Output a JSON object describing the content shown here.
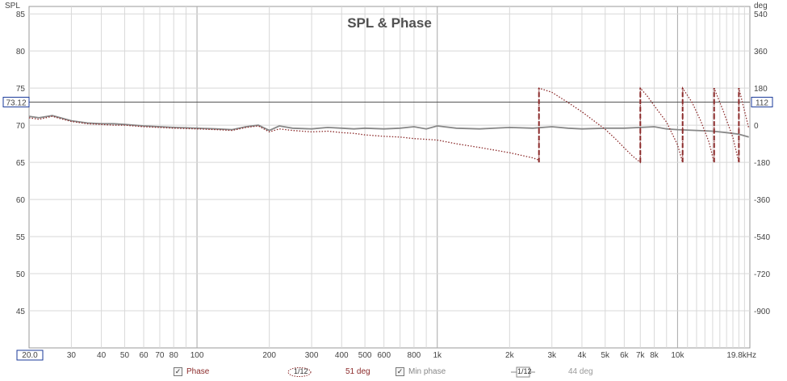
{
  "chart_data": {
    "type": "line",
    "title": "SPL & Phase",
    "ylabel_left": "SPL",
    "ylabel_right": "deg",
    "x_scale": "log",
    "xlim": [
      20,
      20000
    ],
    "ylim_left": [
      40,
      86
    ],
    "ylim_right": [
      -1080,
      576
    ],
    "grid": true,
    "x_tick_labels": [
      "30",
      "40",
      "50",
      "60",
      "70",
      "80",
      "100",
      "200",
      "300",
      "400",
      "500",
      "600",
      "800",
      "1k",
      "2k",
      "3k",
      "4k",
      "5k",
      "6k",
      "7k",
      "8k",
      "10k"
    ],
    "x_tick_values": [
      30,
      40,
      50,
      60,
      70,
      80,
      100,
      200,
      300,
      400,
      500,
      600,
      800,
      1000,
      2000,
      3000,
      4000,
      5000,
      6000,
      7000,
      8000,
      10000
    ],
    "x_start_label": "20.0",
    "x_end_label": "19.8kHz",
    "y_left_ticks": [
      45,
      50,
      55,
      60,
      65,
      70,
      75,
      80,
      85
    ],
    "y_right_ticks": [
      -900,
      -720,
      -540,
      -360,
      -180,
      0,
      180,
      360,
      540
    ],
    "cursor": {
      "spl_label": "73.12",
      "deg_label": "112",
      "spl_value": 73.12
    },
    "series": [
      {
        "axis": "left",
        "style": "solid-gray",
        "x": [
          20,
          22,
          25,
          27,
          30,
          35,
          40,
          45,
          50,
          60,
          70,
          80,
          100,
          120,
          140,
          160,
          180,
          200,
          220,
          250,
          300,
          350,
          400,
          450,
          500,
          600,
          700,
          800,
          900,
          1000,
          1200,
          1500,
          2000,
          2500,
          3000,
          3500,
          4000,
          5000,
          6000,
          7000,
          8000,
          9000,
          10000,
          12000,
          14000,
          16000,
          18000,
          19800
        ],
        "values": [
          71.2,
          71.0,
          71.3,
          71.0,
          70.6,
          70.3,
          70.2,
          70.2,
          70.1,
          69.9,
          69.8,
          69.7,
          69.6,
          69.5,
          69.4,
          69.8,
          70.0,
          69.3,
          69.9,
          69.6,
          69.5,
          69.7,
          69.6,
          69.5,
          69.6,
          69.5,
          69.6,
          69.8,
          69.5,
          69.9,
          69.6,
          69.5,
          69.7,
          69.6,
          69.8,
          69.6,
          69.5,
          69.6,
          69.6,
          69.7,
          69.8,
          69.5,
          69.4,
          69.3,
          69.2,
          69.0,
          68.8,
          68.4
        ]
      },
      {
        "axis": "left",
        "style": "dotted-brown",
        "x": [
          20,
          22,
          25,
          27,
          30,
          35,
          40,
          45,
          50,
          60,
          70,
          80,
          100,
          120,
          140,
          160,
          180,
          200,
          220,
          250,
          300,
          350,
          400,
          450,
          500,
          600,
          700,
          800,
          900,
          1000,
          1200,
          1500,
          2000,
          2500,
          2650
        ],
        "values": [
          71.0,
          70.8,
          71.2,
          70.9,
          70.5,
          70.2,
          70.1,
          70.0,
          70.0,
          69.8,
          69.7,
          69.6,
          69.5,
          69.4,
          69.3,
          69.7,
          69.9,
          69.1,
          69.5,
          69.3,
          69.1,
          69.2,
          69.0,
          68.9,
          68.7,
          68.5,
          68.4,
          68.2,
          68.1,
          68.0,
          67.5,
          67.0,
          66.3,
          65.6,
          65.3
        ]
      },
      {
        "axis": "right",
        "style": "dashed-brown",
        "wrapped_phase_deg": true,
        "x": [
          2650,
          2650,
          3000,
          3500,
          4000,
          4500,
          5000,
          5500,
          6000,
          6500,
          7000,
          7000,
          7500,
          8000,
          9000,
          10000,
          10500,
          10500,
          11500,
          12500,
          13500,
          14200,
          14200,
          15500,
          17000,
          18000,
          18000,
          19800
        ],
        "values": [
          -180,
          180,
          160,
          110,
          65,
          20,
          -20,
          -65,
          -110,
          -150,
          -180,
          180,
          140,
          95,
          15,
          -95,
          -180,
          180,
          110,
          20,
          -80,
          -180,
          180,
          70,
          -60,
          -180,
          180,
          -15
        ]
      }
    ]
  },
  "legend": {
    "item1_label": "Phase",
    "item1_checked": "✓",
    "smoothing1": "1/12",
    "value1": "51 deg",
    "item2_label": "Min phase",
    "item2_checked": "✓",
    "smoothing2": "1/12",
    "value2": "44 deg"
  },
  "colors": {
    "spl": "#888888",
    "phase": "#8b2a2a",
    "grid": "#d8d8d8",
    "grid_major": "#a8a8a8",
    "cursor": "#555555",
    "label_box": "#1a3a9a"
  }
}
